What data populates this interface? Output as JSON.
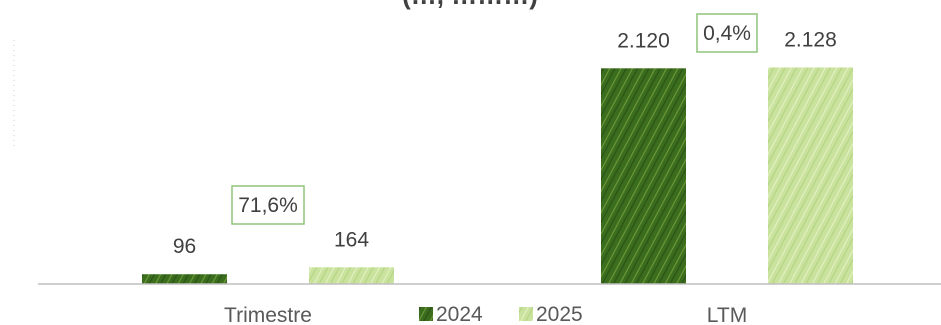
{
  "chart_data": {
    "type": "bar",
    "title": "",
    "categories": [
      "Trimestre",
      "LTM"
    ],
    "series": [
      {
        "name": "2024",
        "values": [
          96,
          2120
        ],
        "labels": [
          "96",
          "2.120"
        ],
        "color": "#3a6b1f",
        "texture": "hatched"
      },
      {
        "name": "2025",
        "values": [
          164,
          2128
        ],
        "labels": [
          "164",
          "2.128"
        ],
        "color": "#c9e29d",
        "texture": "hatched"
      }
    ],
    "growth_labels": [
      "71,6%",
      "0,4%"
    ],
    "growth_box_color": "#8fc47a",
    "axis_color": "#bfbfbf",
    "legend_placement": "bottom-center",
    "grid": false
  }
}
